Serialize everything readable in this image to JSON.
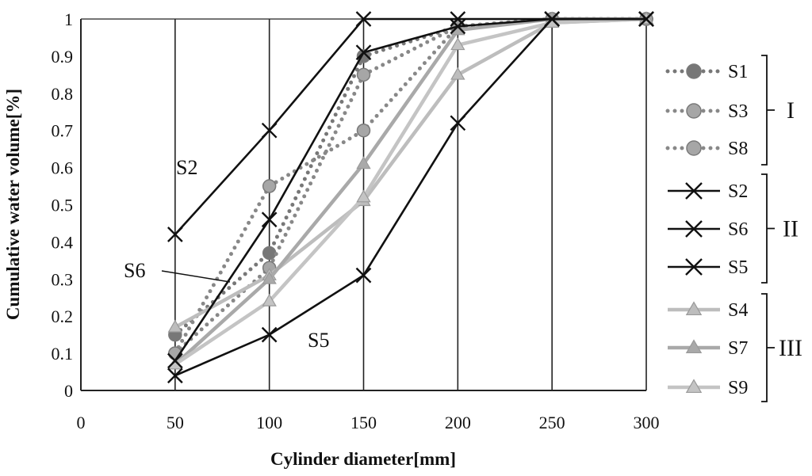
{
  "chart_data": {
    "type": "line",
    "xlabel": "Cylinder diameter[mm]",
    "ylabel": "Cumulative  water volume[%]",
    "xlim": [
      0,
      300
    ],
    "ylim": [
      0,
      1
    ],
    "x_ticks": [
      "0",
      "50",
      "100",
      "150",
      "200",
      "250",
      "300"
    ],
    "y_ticks": [
      "0",
      "0.1",
      "0.2",
      "0.3",
      "0.4",
      "0.5",
      "0.6",
      "0.7",
      "0.8",
      "0.9",
      "1"
    ],
    "grid": "vertical",
    "legend_position": "right",
    "x": [
      50,
      100,
      150,
      200,
      250,
      300
    ],
    "series": [
      {
        "name": "S1",
        "group": "I",
        "style": "dotted-circle",
        "color": "#777777",
        "marker_fill": "#777777",
        "values": [
          0.15,
          0.37,
          0.9,
          0.98,
          1.0,
          1.0
        ]
      },
      {
        "name": "S3",
        "group": "I",
        "style": "dotted-circle",
        "color": "#888888",
        "marker_fill": "#a6a6a6",
        "values": [
          0.1,
          0.33,
          0.85,
          0.98,
          1.0,
          1.0
        ]
      },
      {
        "name": "S8",
        "group": "I",
        "style": "dotted-circle",
        "color": "#888888",
        "marker_fill": "#a6a6a6",
        "values": [
          0.1,
          0.55,
          0.7,
          0.98,
          1.0,
          1.0
        ]
      },
      {
        "name": "S2",
        "group": "II",
        "style": "solid-x",
        "color": "#111111",
        "values": [
          0.42,
          0.7,
          1.0,
          1.0,
          1.0,
          1.0
        ]
      },
      {
        "name": "S6",
        "group": "II",
        "style": "solid-x",
        "color": "#111111",
        "values": [
          0.08,
          0.46,
          0.91,
          0.98,
          1.0,
          1.0
        ]
      },
      {
        "name": "S5",
        "group": "II",
        "style": "solid-x",
        "color": "#111111",
        "values": [
          0.04,
          0.15,
          0.31,
          0.72,
          1.0,
          1.0
        ]
      },
      {
        "name": "S4",
        "group": "III",
        "style": "solid-triangle",
        "color": "#bdbdbd",
        "marker_fill": "#bdbdbd",
        "values": [
          0.17,
          0.31,
          0.51,
          0.85,
          0.99,
          1.0
        ]
      },
      {
        "name": "S7",
        "group": "III",
        "style": "solid-triangle",
        "color": "#a9a9a9",
        "marker_fill": "#a9a9a9",
        "values": [
          0.07,
          0.3,
          0.61,
          0.97,
          1.0,
          1.0
        ]
      },
      {
        "name": "S9",
        "group": "III",
        "style": "solid-triangle",
        "color": "#c4c4c4",
        "marker_fill": "#c4c4c4",
        "values": [
          0.07,
          0.24,
          0.52,
          0.93,
          0.99,
          1.0
        ]
      }
    ],
    "groups": [
      "I",
      "II",
      "III"
    ],
    "annotations": [
      {
        "text": "S2",
        "series": "S2"
      },
      {
        "text": "S6",
        "series": "S6"
      },
      {
        "text": "S5",
        "series": "S5"
      }
    ]
  }
}
